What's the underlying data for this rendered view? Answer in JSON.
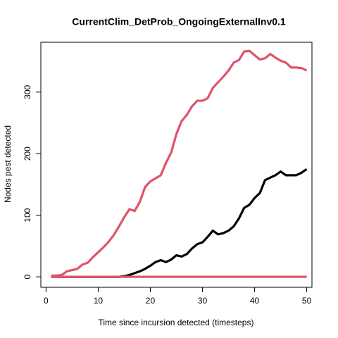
{
  "chart_data": {
    "type": "line",
    "title": "CurrentClim_DetProb_OngoingExternalInv0.1",
    "x_label": "Time since incursion detected (timesteps)",
    "y_label": "Nodes pest detected",
    "x": [
      1,
      2,
      3,
      4,
      5,
      6,
      7,
      8,
      9,
      10,
      11,
      12,
      13,
      14,
      15,
      16,
      17,
      18,
      19,
      20,
      21,
      22,
      23,
      24,
      25,
      26,
      27,
      28,
      29,
      30,
      31,
      32,
      33,
      34,
      35,
      36,
      37,
      38,
      39,
      40,
      41,
      42,
      43,
      44,
      45,
      46,
      47,
      48,
      49,
      50
    ],
    "series": [
      {
        "color": "#DF536B",
        "values": [
          2,
          2,
          3,
          9,
          11,
          13,
          20,
          23,
          32,
          40,
          48,
          57,
          68,
          82,
          97,
          110,
          107,
          122,
          146,
          155,
          160,
          165,
          185,
          202,
          232,
          253,
          263,
          277,
          286,
          286,
          290,
          307,
          316,
          325,
          335,
          348,
          352,
          366,
          367,
          360,
          353,
          355,
          362,
          356,
          351,
          348,
          340,
          340,
          339,
          335
        ]
      },
      {
        "color": "#000000",
        "values": [
          0,
          0,
          0,
          0,
          0,
          0,
          0,
          0,
          0,
          0,
          0,
          0,
          0,
          0,
          1,
          3,
          6,
          9,
          13,
          18,
          24,
          27,
          24,
          28,
          35,
          33,
          37,
          46,
          53,
          56,
          65,
          75,
          69,
          71,
          75,
          82,
          95,
          112,
          117,
          128,
          136,
          157,
          161,
          165,
          171,
          165,
          165,
          165,
          169,
          175
        ]
      },
      {
        "color": "#DF536B",
        "values": [
          0,
          0,
          0,
          0,
          0,
          0,
          0,
          0,
          0,
          0,
          0,
          0,
          0,
          0,
          0,
          0,
          0,
          0,
          0,
          0,
          0,
          0,
          0,
          0,
          0,
          0,
          0,
          0,
          0,
          0,
          0,
          0,
          0,
          0,
          0,
          0,
          0,
          0,
          0,
          0,
          0,
          0,
          0,
          0,
          0,
          0,
          0,
          0,
          0,
          0
        ]
      }
    ],
    "xlim": [
      -1,
      51
    ],
    "xticks": [
      0,
      10,
      20,
      30,
      40,
      50
    ],
    "ylim": [
      -17,
      381
    ],
    "yticks": [
      0,
      100,
      200,
      300
    ]
  }
}
